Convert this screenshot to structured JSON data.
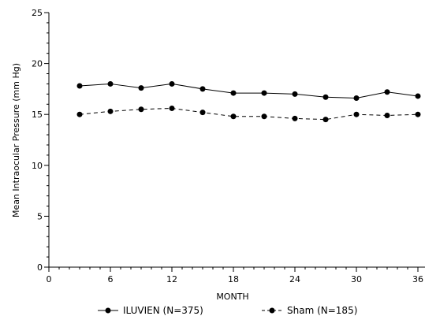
{
  "chart_data": {
    "type": "line",
    "title": "",
    "xlabel": "MONTH",
    "ylabel": "Mean Intraocular Pressure (mm Hg)",
    "xlim": [
      0,
      36
    ],
    "ylim": [
      0,
      25
    ],
    "xticks": [
      "0",
      "6",
      "12",
      "18",
      "24",
      "30",
      "36"
    ],
    "yticks": [
      "0",
      "5",
      "10",
      "15",
      "20",
      "25"
    ],
    "grid": false,
    "legend_position": "bottom",
    "x": [
      3,
      6,
      9,
      12,
      15,
      18,
      21,
      24,
      27,
      30,
      33,
      36
    ],
    "series": [
      {
        "name": "ILUVIEN (N=375)",
        "line_style": "solid",
        "color": "#000000",
        "values": [
          17.8,
          18.0,
          17.6,
          18.0,
          17.5,
          17.1,
          17.1,
          17.0,
          16.7,
          16.6,
          17.2,
          16.8
        ]
      },
      {
        "name": "Sham (N=185)",
        "line_style": "dashed",
        "color": "#000000",
        "values": [
          15.0,
          15.3,
          15.5,
          15.6,
          15.2,
          14.8,
          14.8,
          14.6,
          14.5,
          15.0,
          14.9,
          15.0
        ]
      }
    ]
  }
}
